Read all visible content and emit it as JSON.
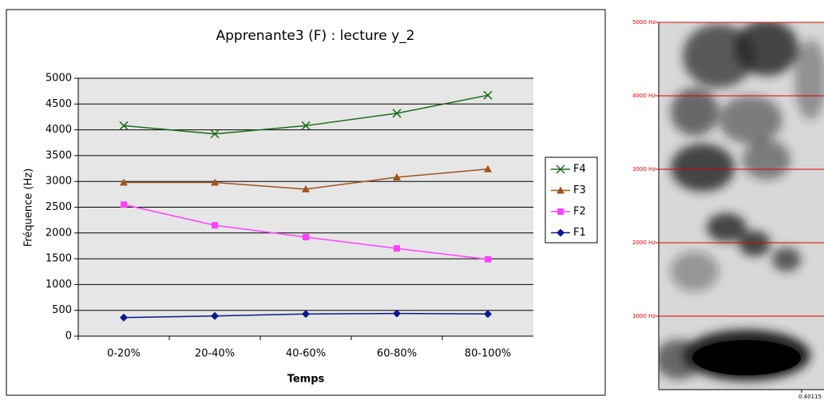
{
  "chart_data": [
    {
      "type": "line",
      "title": "Apprenante3 (F) : lecture y_2",
      "x_label": "Temps",
      "y_label": "Fréquence (Hz)",
      "categories": [
        "0-20%",
        "20-40%",
        "40-60%",
        "60-80%",
        "80-100%"
      ],
      "series": [
        {
          "name": "F4",
          "color": "#1b6b1b",
          "marker": "x",
          "values": [
            4080,
            3920,
            4080,
            4320,
            4670
          ]
        },
        {
          "name": "F3",
          "color": "#a0521c",
          "marker": "triangle",
          "values": [
            2980,
            2980,
            2850,
            3080,
            3240
          ]
        },
        {
          "name": "F2",
          "color": "#ff40ff",
          "marker": "square",
          "values": [
            2550,
            2150,
            1920,
            1700,
            1490
          ]
        },
        {
          "name": "F1",
          "color": "#0b1a8c",
          "marker": "diamond",
          "values": [
            360,
            390,
            430,
            440,
            430
          ]
        }
      ],
      "ylim": [
        0,
        5000
      ],
      "yticks": [
        0,
        500,
        1000,
        1500,
        2000,
        2500,
        3000,
        3500,
        4000,
        4500,
        5000
      ],
      "grid": true,
      "legend": "right"
    },
    {
      "type": "spectrogram",
      "ylim": [
        0,
        5000
      ],
      "yticks": [
        {
          "value": 1000,
          "label": "1000 Hz"
        },
        {
          "value": 2000,
          "label": "2000 Hz"
        },
        {
          "value": 3000,
          "label": "3000 Hz"
        },
        {
          "value": 4000,
          "label": "4000 Hz"
        },
        {
          "value": 5000,
          "label": "5000 Hz"
        }
      ],
      "xlim": [
        0,
        0.40115
      ],
      "xticks": [
        0.40115
      ],
      "grid_color": "#e00000"
    }
  ]
}
